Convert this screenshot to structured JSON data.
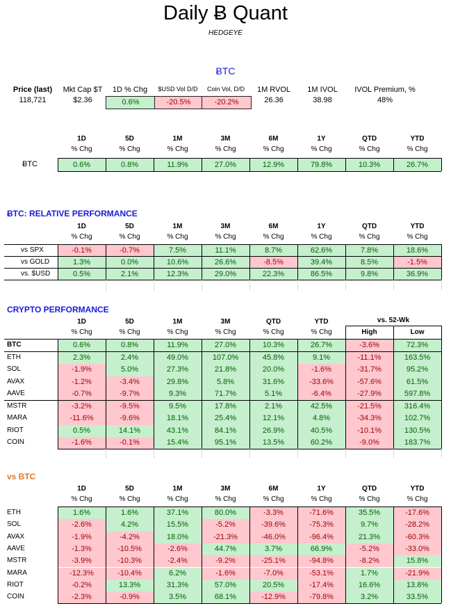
{
  "header": {
    "title": "Daily Ƀ Quant",
    "subtitle": "HEDGEYE"
  },
  "btc_heading": "ɃTC",
  "price_panel": {
    "labels": [
      "Price (last)",
      "Mkt Cap $T",
      "1D % Chg",
      "$USD Vol D/D",
      "Coin Vol, D/D",
      "1M RVOL",
      "1M IVOL",
      "IVOL Premium, %"
    ],
    "values": [
      "118,721",
      "$2.36",
      "0.6%",
      "-20.5%",
      "-20.2%",
      "26.36",
      "38.98",
      "48%"
    ]
  },
  "btc_table": {
    "headers": [
      "1D",
      "5D",
      "1M",
      "3M",
      "6M",
      "1Y",
      "QTD",
      "YTD"
    ],
    "subheader": "% Chg",
    "row_label": "ɃTC",
    "values": [
      "0.6%",
      "0.8%",
      "11.9%",
      "27.0%",
      "12.9%",
      "79.8%",
      "10.3%",
      "26.7%"
    ]
  },
  "relative": {
    "title": "ɃTC: RELATIVE PERFORMANCE",
    "headers": [
      "1D",
      "5D",
      "1M",
      "3M",
      "6M",
      "1Y",
      "QTD",
      "YTD"
    ],
    "subheader": "% Chg",
    "rows": [
      {
        "label": "vs SPX",
        "values": [
          "-0.1%",
          "-0.7%",
          "7.5%",
          "11.1%",
          "8.7%",
          "62.6%",
          "7.8%",
          "18.6%"
        ]
      },
      {
        "label": "vs GOLD",
        "values": [
          "1.3%",
          "0.0%",
          "10.6%",
          "26.6%",
          "-8.5%",
          "39.4%",
          "8.5%",
          "-1.5%"
        ]
      },
      {
        "label": "vs. $USD",
        "values": [
          "0.5%",
          "2.1%",
          "12.3%",
          "29.0%",
          "22.3%",
          "86.5%",
          "9.8%",
          "36.9%"
        ]
      }
    ]
  },
  "crypto": {
    "title": "CRYPTO PERFORMANCE",
    "headers": [
      "1D",
      "5D",
      "1M",
      "3M",
      "QTD",
      "YTD"
    ],
    "subheader": "% Chg",
    "wk52_title": "vs. 52-Wk",
    "wk52_headers": [
      "High",
      "Low"
    ],
    "rows": [
      {
        "label": "BTC",
        "values": [
          "0.6%",
          "0.8%",
          "11.9%",
          "27.0%",
          "10.3%",
          "26.7%",
          "-3.6%",
          "72.3%"
        ]
      },
      {
        "label": "ETH",
        "values": [
          "2.3%",
          "2.4%",
          "49.0%",
          "107.0%",
          "45.8%",
          "9.1%",
          "-11.1%",
          "163.5%"
        ]
      },
      {
        "label": "SOL",
        "values": [
          "-1.9%",
          "5.0%",
          "27.3%",
          "21.8%",
          "20.0%",
          "-1.6%",
          "-31.7%",
          "95.2%"
        ]
      },
      {
        "label": "AVAX",
        "values": [
          "-1.2%",
          "-3.4%",
          "29.8%",
          "5.8%",
          "31.6%",
          "-33.6%",
          "-57.6%",
          "61.5%"
        ]
      },
      {
        "label": "AAVE",
        "values": [
          "-0.7%",
          "-9.7%",
          "9.3%",
          "71.7%",
          "5.1%",
          "-6.4%",
          "-27.9%",
          "597.8%"
        ]
      },
      {
        "label": "MSTR",
        "values": [
          "-3.2%",
          "-9.5%",
          "9.5%",
          "17.8%",
          "2.1%",
          "42.5%",
          "-21.5%",
          "316.4%"
        ]
      },
      {
        "label": "MARA",
        "values": [
          "-11.6%",
          "-9.6%",
          "18.1%",
          "25.4%",
          "12.1%",
          "4.8%",
          "-34.3%",
          "102.7%"
        ]
      },
      {
        "label": "RIOT",
        "values": [
          "0.5%",
          "14.1%",
          "43.1%",
          "84.1%",
          "26.9%",
          "40.5%",
          "-10.1%",
          "130.5%"
        ]
      },
      {
        "label": "COIN",
        "values": [
          "-1.6%",
          "-0.1%",
          "15.4%",
          "95.1%",
          "13.5%",
          "60.2%",
          "-9.0%",
          "183.7%"
        ]
      }
    ]
  },
  "vsbtc": {
    "title": "vs BTC",
    "headers": [
      "1D",
      "5D",
      "1M",
      "3M",
      "6M",
      "1Y",
      "QTD",
      "YTD"
    ],
    "subheader": "% Chg",
    "rows": [
      {
        "label": "ETH",
        "values": [
          "1.6%",
          "1.6%",
          "37.1%",
          "80.0%",
          "-3.3%",
          "-71.6%",
          "35.5%",
          "-17.6%"
        ]
      },
      {
        "label": "SOL",
        "values": [
          "-2.6%",
          "4.2%",
          "15.5%",
          "-5.2%",
          "-39.6%",
          "-75.3%",
          "9.7%",
          "-28.2%"
        ]
      },
      {
        "label": "AVAX",
        "values": [
          "-1.9%",
          "-4.2%",
          "18.0%",
          "-21.3%",
          "-46.0%",
          "-96.4%",
          "21.3%",
          "-60.3%"
        ]
      },
      {
        "label": "AAVE",
        "values": [
          "-1.3%",
          "-10.5%",
          "-2.6%",
          "44.7%",
          "3.7%",
          "66.9%",
          "-5.2%",
          "-33.0%"
        ]
      },
      {
        "label": "MSTR",
        "values": [
          "-3.9%",
          "-10.3%",
          "-2.4%",
          "-9.2%",
          "-25.1%",
          "-94.8%",
          "-8.2%",
          "15.8%"
        ]
      },
      {
        "label": "MARA",
        "values": [
          "-12.3%",
          "-10.4%",
          "6.2%",
          "-1.6%",
          "-7.0%",
          "-53.1%",
          "1.7%",
          "-21.9%"
        ]
      },
      {
        "label": "RIOT",
        "values": [
          "-0.2%",
          "13.3%",
          "31.3%",
          "57.0%",
          "20.5%",
          "-17.4%",
          "16.6%",
          "13.8%"
        ]
      },
      {
        "label": "COIN",
        "values": [
          "-2.3%",
          "-0.9%",
          "3.5%",
          "68.1%",
          "-12.9%",
          "-79.8%",
          "3.2%",
          "33.5%"
        ]
      }
    ]
  },
  "colors": {
    "pos_bg": "#c6efce",
    "pos_fg": "#006100",
    "neg_bg": "#ffc7ce",
    "neg_fg": "#9c0006",
    "accent_blue": "#1a1adb",
    "accent_orange": "#e07828"
  }
}
